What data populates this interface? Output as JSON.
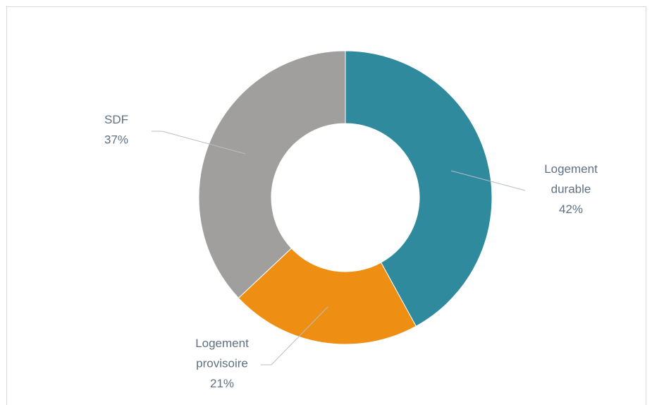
{
  "chart_data": {
    "type": "donut",
    "categories": [
      "Logement durable",
      "Logement provisoire",
      "SDF"
    ],
    "values": [
      42,
      21,
      37
    ],
    "value_labels": [
      "42%",
      "21%",
      "37%"
    ],
    "colors": [
      "#2e8a9c",
      "#ee8f13",
      "#a09f9d"
    ]
  }
}
